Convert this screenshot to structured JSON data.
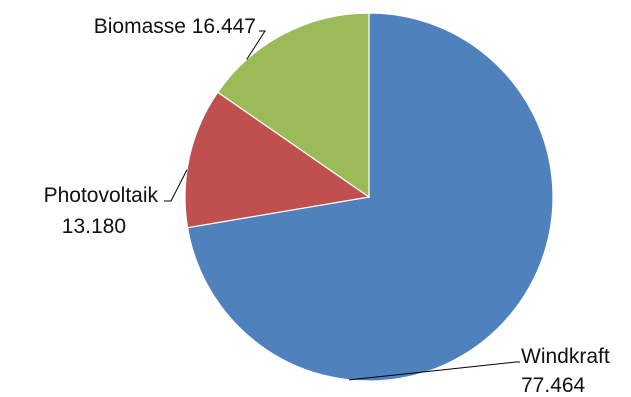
{
  "chart_data": {
    "type": "pie",
    "title": "",
    "slices": [
      {
        "name": "Windkraft",
        "value": 77.464,
        "value_label": "77.464",
        "color": "#4F81BD"
      },
      {
        "name": "Photovoltaik",
        "value": 13.18,
        "value_label": "13.180",
        "color": "#C0504D"
      },
      {
        "name": "Biomasse",
        "value": 16.447,
        "value_label": "16.447",
        "color": "#9BBB59"
      }
    ],
    "start": "12 o'clock",
    "direction": "clockwise",
    "legend": "none"
  }
}
